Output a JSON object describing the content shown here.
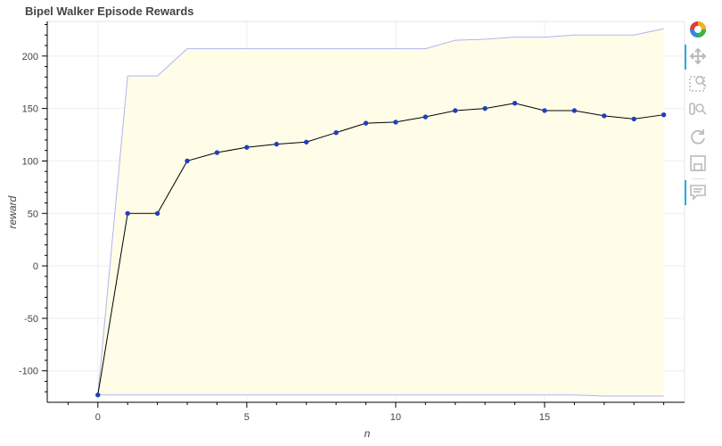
{
  "chart_data": {
    "type": "line",
    "title": "Bipel Walker Episode Rewards",
    "xlabel": "n",
    "ylabel": "reward",
    "xlim": [
      -1.7,
      19.7
    ],
    "ylim": [
      -130,
      233
    ],
    "x_ticks": [
      0,
      5,
      10,
      15
    ],
    "y_ticks": [
      -100,
      -50,
      0,
      50,
      100,
      150,
      200
    ],
    "grid": true,
    "series": [
      {
        "x": [
          0,
          1,
          2,
          3,
          4,
          5,
          6,
          7,
          8,
          9,
          10,
          11,
          12,
          13,
          14,
          15,
          16,
          17,
          18,
          19
        ],
        "values": [
          -123,
          50,
          50,
          100,
          108,
          113,
          116,
          118,
          127,
          136,
          137,
          142,
          148,
          150,
          155,
          148,
          148,
          143,
          140,
          144
        ],
        "color": "#000000",
        "marker_color": "#1f3fbf"
      }
    ],
    "band": {
      "upper": [
        -123,
        181,
        181,
        207,
        207,
        207,
        207,
        207,
        207,
        207,
        207,
        207,
        215,
        216,
        218,
        218,
        220,
        220,
        220,
        226
      ],
      "lower": [
        -123,
        -123,
        -123,
        -123,
        -123,
        -123,
        -123,
        -123,
        -123,
        -123,
        -123,
        -123,
        -123,
        -123,
        -123,
        -123,
        -123,
        -124,
        -124,
        -124
      ],
      "fill_color": "#fffde8",
      "line_color": "#b3b3f0"
    }
  },
  "toolbar": {
    "items": [
      {
        "name": "bokeh-logo",
        "active": false
      },
      {
        "name": "pan-tool",
        "active": true
      },
      {
        "name": "box-zoom-tool",
        "active": false
      },
      {
        "name": "wheel-zoom-tool",
        "active": false
      },
      {
        "name": "reset-tool",
        "active": false
      },
      {
        "name": "save-tool",
        "active": false
      },
      {
        "name": "hover-tool",
        "active": true
      }
    ],
    "colors": {
      "active": "#26aae1",
      "icon": "#bbbbbb"
    }
  }
}
